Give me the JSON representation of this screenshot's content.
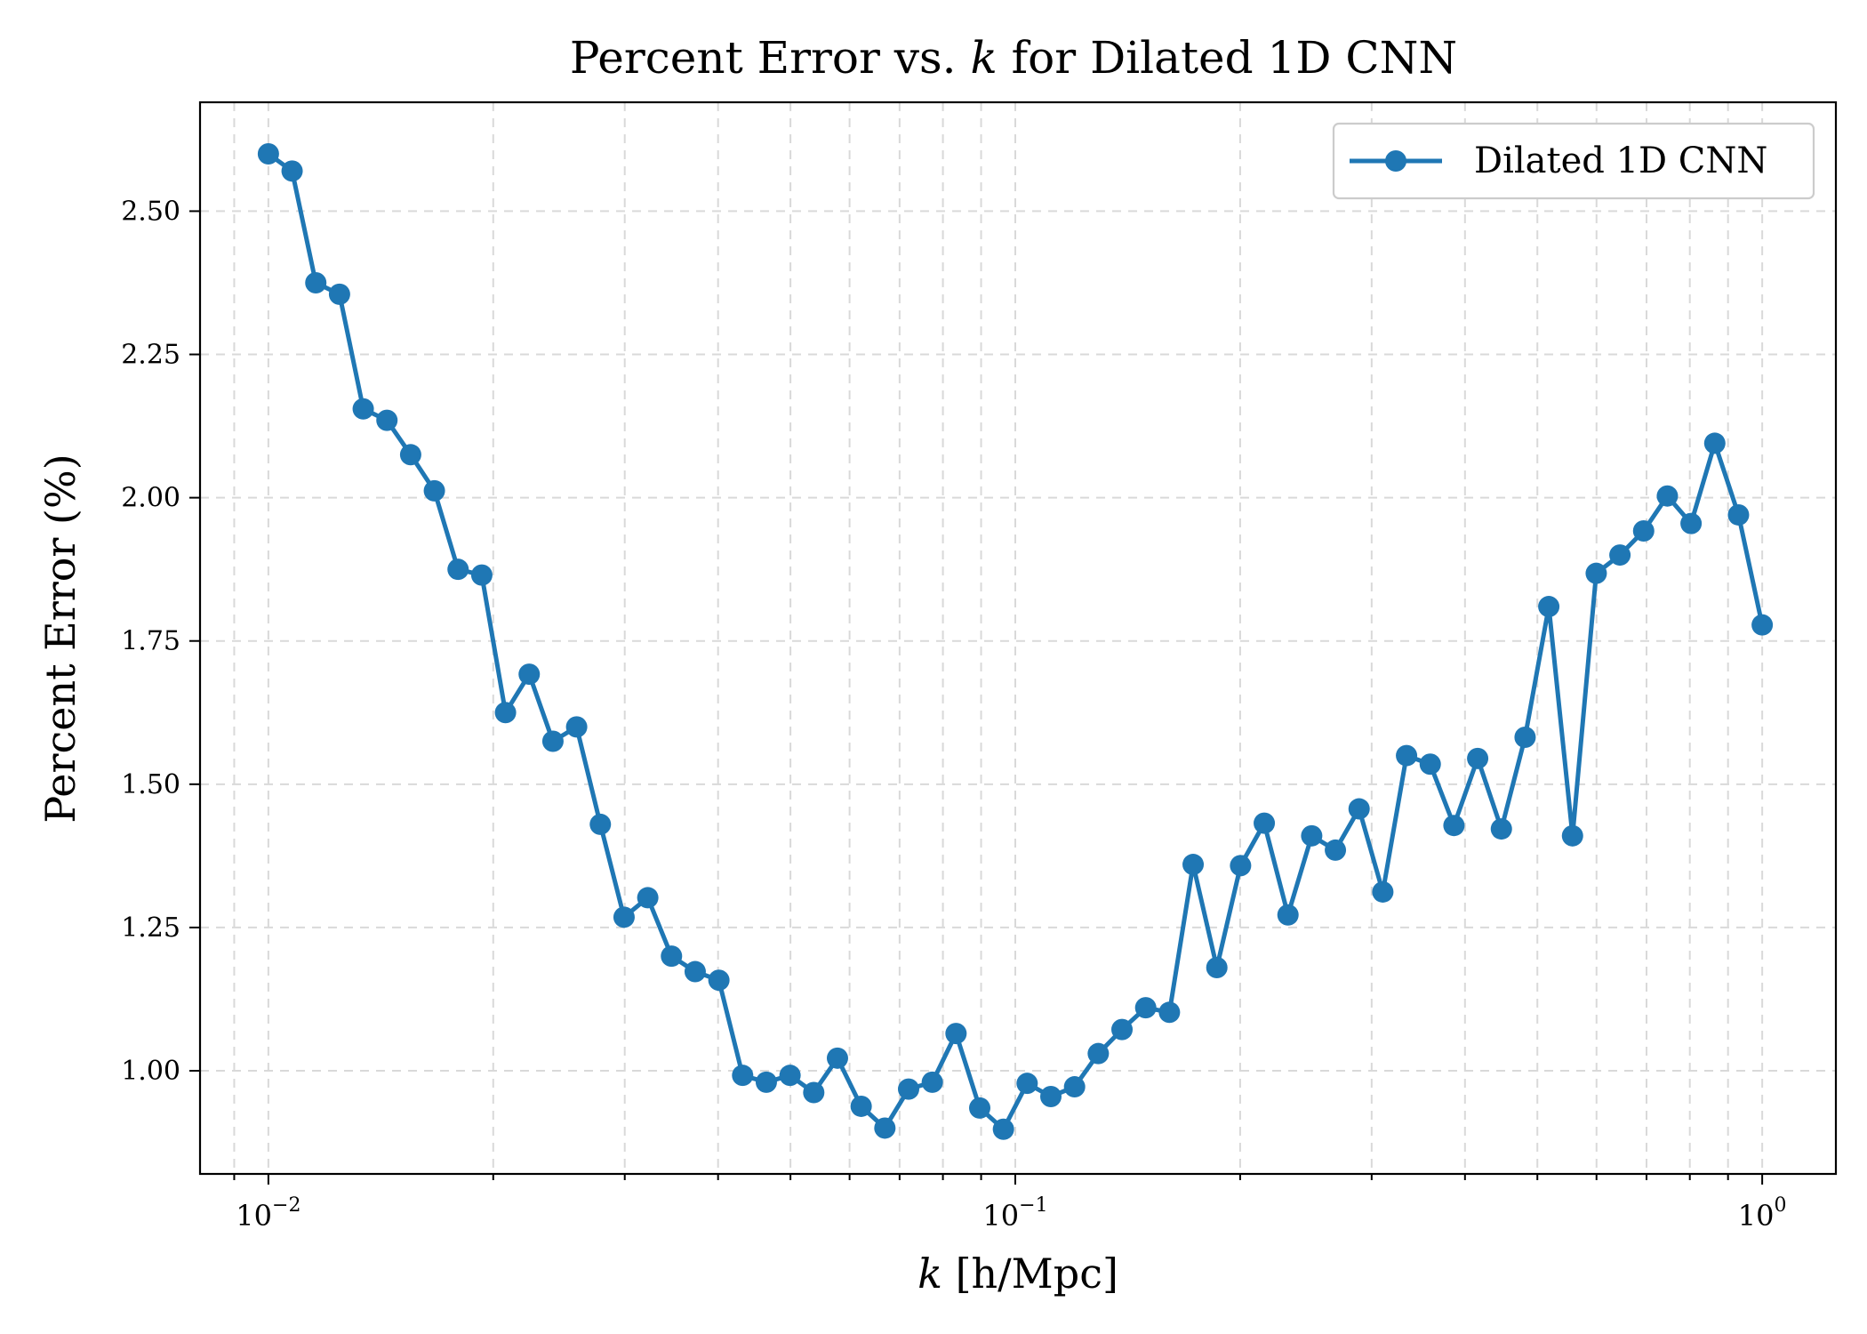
{
  "chart_data": {
    "type": "line",
    "title": "Percent Error vs. k for Dilated 1D CNN",
    "title_parts": {
      "before": "Percent Error vs. ",
      "var": "k",
      "after": " for Dilated 1D CNN"
    },
    "xlabel": "k [h/Mpc]",
    "xlabel_parts": {
      "var": "k",
      "unit": " [h/Mpc]"
    },
    "ylabel": "Percent Error (%)",
    "xscale": "log",
    "xlim": [
      0.0081,
      1.255
    ],
    "ylim": [
      0.82,
      2.69
    ],
    "x_major_ticks": [
      {
        "value": 0.01,
        "base": "10",
        "exp": "−2"
      },
      {
        "value": 0.1,
        "base": "10",
        "exp": "−1"
      },
      {
        "value": 1,
        "base": "10",
        "exp": "0"
      }
    ],
    "y_ticks": [
      {
        "value": 1.0,
        "label": "1.00"
      },
      {
        "value": 1.25,
        "label": "1.25"
      },
      {
        "value": 1.5,
        "label": "1.50"
      },
      {
        "value": 1.75,
        "label": "1.75"
      },
      {
        "value": 2.0,
        "label": "2.00"
      },
      {
        "value": 2.25,
        "label": "2.25"
      },
      {
        "value": 2.5,
        "label": "2.50"
      }
    ],
    "grid": true,
    "legend_position": "top-right",
    "series": [
      {
        "name": "Dilated 1D CNN",
        "color": "#1f77b4",
        "marker": "circle",
        "values": [
          2.6,
          2.57,
          2.375,
          2.355,
          2.155,
          2.135,
          2.075,
          2.012,
          1.875,
          1.865,
          1.625,
          1.692,
          1.575,
          1.6,
          1.43,
          1.268,
          1.302,
          1.2,
          1.173,
          1.158,
          0.992,
          0.98,
          0.992,
          0.962,
          1.022,
          0.938,
          0.9,
          0.968,
          0.98,
          1.065,
          0.935,
          0.898,
          0.978,
          0.955,
          0.972,
          1.03,
          1.072,
          1.11,
          1.102,
          1.36,
          1.18,
          1.358,
          1.432,
          1.272,
          1.41,
          1.385,
          1.457,
          1.312,
          1.55,
          1.535,
          1.428,
          1.545,
          1.422,
          1.582,
          1.81,
          1.41,
          1.868,
          1.9,
          1.942,
          2.003,
          1.955,
          2.095,
          1.97,
          1.778
        ]
      }
    ]
  }
}
